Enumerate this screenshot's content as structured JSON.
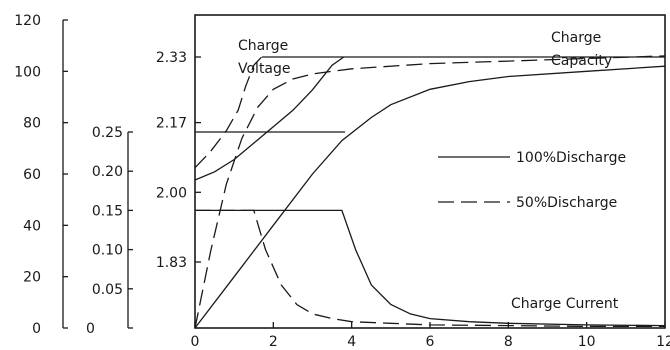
{
  "chart_data": {
    "type": "line",
    "title": "",
    "xlabel": "",
    "x_ticks": [
      "0",
      "2",
      "4",
      "6",
      "8",
      "10",
      "12"
    ],
    "xlim": [
      0,
      12
    ],
    "axes": [
      {
        "id": "capacity",
        "ticks": [
          "0",
          "20",
          "40",
          "60",
          "80",
          "100",
          "120"
        ],
        "ylim": [
          0,
          120
        ]
      },
      {
        "id": "current",
        "ticks": [
          "0",
          "0.05",
          "0.10",
          "0.15",
          "0.20",
          "0.25"
        ],
        "ylim": [
          0,
          0.25
        ]
      },
      {
        "id": "voltage",
        "ticks": [
          "1.83",
          "2.00",
          "2.17",
          "2.33"
        ],
        "tick_values": [
          1.83,
          2.0,
          2.17,
          2.33
        ]
      }
    ],
    "annotations": {
      "charge_voltage": "Charge\nVoltage",
      "charge_capacity": "Charge\nCapacity",
      "charge_current": "Charge Current"
    },
    "legend": [
      {
        "label": "100%Discharge",
        "style": "solid"
      },
      {
        "label": "50%Discharge",
        "style": "dashed"
      }
    ],
    "legend_position": "right",
    "grid": false,
    "series": [
      {
        "group": "charge_voltage",
        "style": "solid",
        "axis": "voltage",
        "x": [
          0,
          0.5,
          1,
          1.5,
          2,
          2.5,
          3,
          3.5,
          3.8
        ],
        "y": [
          2.03,
          2.05,
          2.08,
          2.12,
          2.16,
          2.2,
          2.25,
          2.31,
          2.33
        ]
      },
      {
        "group": "charge_voltage",
        "style": "dashed",
        "axis": "voltage",
        "x": [
          0,
          0.4,
          0.8,
          1.1,
          1.3,
          1.5,
          1.7
        ],
        "y": [
          2.06,
          2.1,
          2.15,
          2.2,
          2.26,
          2.31,
          2.33
        ]
      },
      {
        "group": "charge_capacity",
        "style": "solid",
        "axis": "capacity",
        "x": [
          0,
          1,
          2,
          3,
          3.75,
          4.5,
          5,
          6,
          7,
          8,
          10,
          12
        ],
        "y": [
          0,
          20,
          40,
          60,
          73,
          82,
          87,
          93,
          96,
          98,
          100,
          102
        ]
      },
      {
        "group": "charge_capacity",
        "style": "dashed",
        "axis": "capacity",
        "x": [
          0,
          0.4,
          0.8,
          1.2,
          1.6,
          2,
          2.5,
          3,
          4,
          6,
          8,
          10,
          12
        ],
        "y": [
          0,
          30,
          56,
          74,
          86,
          93,
          97,
          99,
          101,
          103,
          104,
          105,
          106
        ]
      },
      {
        "group": "charge_current",
        "style": "solid",
        "axis": "current",
        "x": [
          0,
          3.75,
          4.1,
          4.5,
          5,
          5.5,
          6,
          7,
          8,
          10,
          12
        ],
        "y": [
          0.15,
          0.15,
          0.1,
          0.055,
          0.03,
          0.018,
          0.012,
          0.008,
          0.006,
          0.004,
          0.003
        ]
      },
      {
        "group": "charge_current",
        "style": "dashed",
        "axis": "current",
        "x": [
          0,
          1.5,
          1.8,
          2.2,
          2.6,
          3,
          3.5,
          4,
          5,
          6,
          8,
          10,
          12
        ],
        "y": [
          0.15,
          0.15,
          0.1,
          0.055,
          0.03,
          0.018,
          0.012,
          0.008,
          0.006,
          0.004,
          0.003,
          0.002,
          0.002
        ]
      }
    ]
  }
}
